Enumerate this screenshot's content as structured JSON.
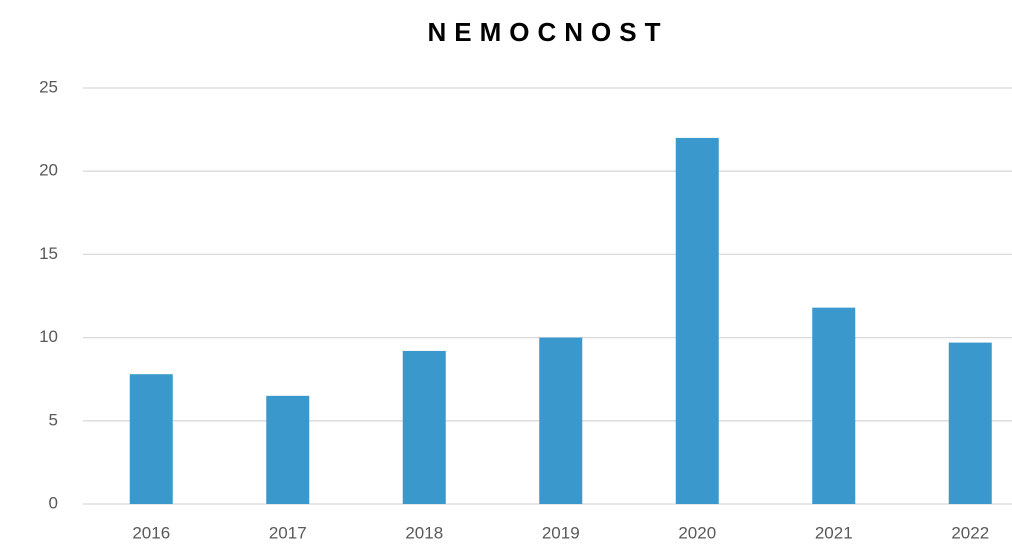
{
  "chart_data": {
    "type": "bar",
    "title": "NEMOCNOST",
    "categories": [
      "2016",
      "2017",
      "2018",
      "2019",
      "2020",
      "2021",
      "2022"
    ],
    "values": [
      7.8,
      6.5,
      9.2,
      10,
      22,
      11.8,
      9.7
    ],
    "color": "#3a98cc",
    "ylim": [
      0,
      25
    ],
    "yticks": [
      0,
      5,
      10,
      15,
      20,
      25
    ],
    "grid": true
  }
}
